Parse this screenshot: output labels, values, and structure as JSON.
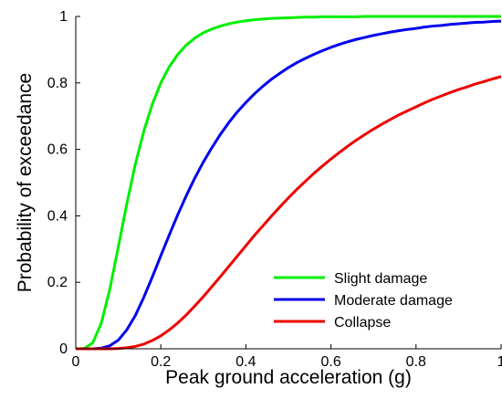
{
  "chart_data": {
    "type": "line",
    "xlabel": "Peak ground acceleration (g)",
    "ylabel": "Probability of exceedance",
    "xlim": [
      0,
      1
    ],
    "ylim": [
      0,
      1
    ],
    "x_ticks": [
      "0",
      "0.2",
      "0.4",
      "0.6",
      "0.8",
      "1"
    ],
    "y_ticks": [
      "0",
      "0.2",
      "0.4",
      "0.6",
      "0.8",
      "1"
    ],
    "grid": false,
    "legend_position": "bottom-right",
    "x": [
      0,
      0.02,
      0.04,
      0.06,
      0.08,
      0.1,
      0.12,
      0.14,
      0.16,
      0.18,
      0.2,
      0.22,
      0.24,
      0.26,
      0.28,
      0.3,
      0.32,
      0.34,
      0.36,
      0.38,
      0.4,
      0.42,
      0.44,
      0.46,
      0.48,
      0.5,
      0.52,
      0.54,
      0.56,
      0.58,
      0.6,
      0.62,
      0.64,
      0.66,
      0.68,
      0.7,
      0.72,
      0.74,
      0.76,
      0.78,
      0.8,
      0.82,
      0.84,
      0.86,
      0.88,
      0.9,
      0.92,
      0.94,
      0.96,
      0.98,
      1.0
    ],
    "series": [
      {
        "name": "Slight damage",
        "color": "#00ee00",
        "values": [
          0,
          0.001,
          0.018,
          0.077,
          0.179,
          0.306,
          0.436,
          0.555,
          0.655,
          0.736,
          0.8,
          0.849,
          0.886,
          0.914,
          0.935,
          0.951,
          0.962,
          0.971,
          0.978,
          0.983,
          0.987,
          0.99,
          0.992,
          0.994,
          0.995,
          0.996,
          0.997,
          0.998,
          0.998,
          0.999,
          0.999,
          0.999,
          0.999,
          0.999,
          1.0,
          1.0,
          1.0,
          1.0,
          1.0,
          1.0,
          1.0,
          1.0,
          1.0,
          1.0,
          1.0,
          1.0,
          1.0,
          1.0,
          1.0,
          1.0,
          1.0
        ]
      },
      {
        "name": "Moderate damage",
        "color": "#0000ee",
        "values": [
          0,
          0,
          0,
          0.002,
          0.009,
          0.026,
          0.057,
          0.1,
          0.155,
          0.216,
          0.28,
          0.343,
          0.404,
          0.461,
          0.514,
          0.562,
          0.605,
          0.645,
          0.681,
          0.713,
          0.741,
          0.767,
          0.79,
          0.811,
          0.829,
          0.846,
          0.861,
          0.874,
          0.886,
          0.897,
          0.907,
          0.916,
          0.924,
          0.931,
          0.937,
          0.943,
          0.948,
          0.953,
          0.957,
          0.961,
          0.964,
          0.968,
          0.971,
          0.973,
          0.976,
          0.978,
          0.98,
          0.982,
          0.983,
          0.985,
          0.986
        ]
      },
      {
        "name": "Collapse",
        "color": "#ee0000",
        "values": [
          0,
          0,
          0,
          0,
          0,
          0.001,
          0.003,
          0.007,
          0.014,
          0.025,
          0.039,
          0.057,
          0.078,
          0.102,
          0.129,
          0.157,
          0.187,
          0.217,
          0.248,
          0.279,
          0.31,
          0.341,
          0.37,
          0.399,
          0.427,
          0.454,
          0.48,
          0.504,
          0.528,
          0.55,
          0.571,
          0.591,
          0.61,
          0.628,
          0.645,
          0.661,
          0.676,
          0.69,
          0.704,
          0.716,
          0.728,
          0.74,
          0.751,
          0.761,
          0.771,
          0.78,
          0.788,
          0.797,
          0.804,
          0.812,
          0.819
        ]
      }
    ]
  }
}
